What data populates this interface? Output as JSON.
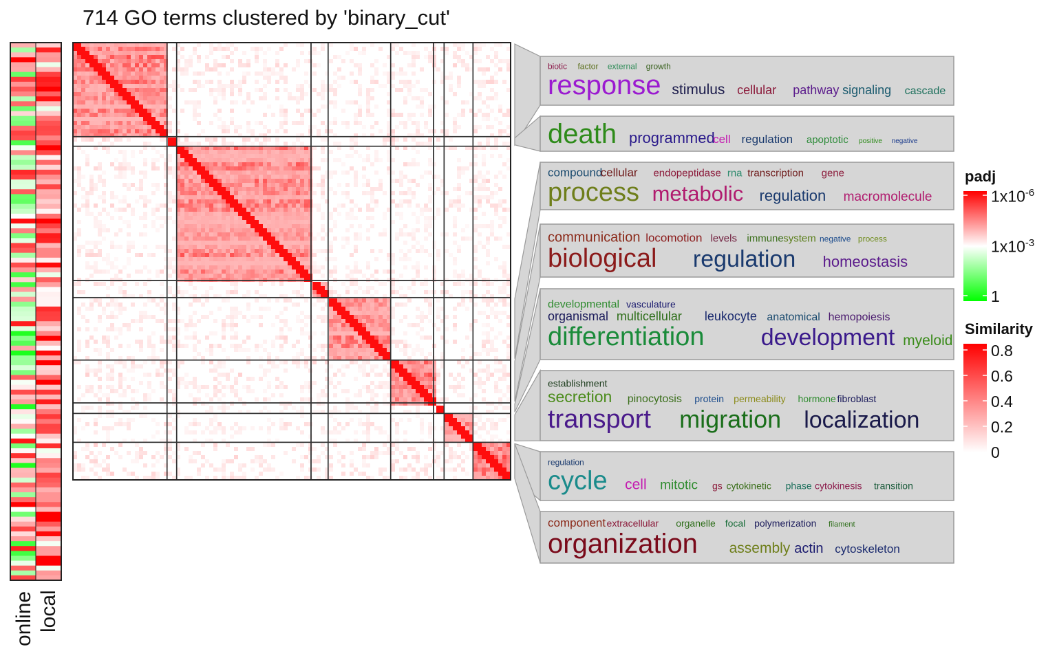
{
  "chart_data": {
    "type": "heatmap",
    "title": "714 GO terms clustered by 'binary_cut'",
    "annotation_columns": [
      "online",
      "local"
    ],
    "n_terms": 714,
    "clusters": [
      {
        "keywords": [
          {
            "w": "biotic",
            "c": "#8b1a4a",
            "s": 12
          },
          {
            "w": "factor",
            "c": "#5a6e1a",
            "s": 12
          },
          {
            "w": "external",
            "c": "#2e8b57",
            "s": 12
          },
          {
            "w": "growth",
            "c": "#355e1a",
            "s": 12
          },
          {
            "w": "response",
            "c": "#9b1bd0",
            "s": 40,
            "nl": true
          },
          {
            "w": "stimulus",
            "c": "#1a1a4a",
            "s": 21
          },
          {
            "w": "cellular",
            "c": "#8b1a3a",
            "s": 18
          },
          {
            "w": "pathway",
            "c": "#5a1a8b",
            "s": 18
          },
          {
            "w": "signaling",
            "c": "#1a5a6e",
            "s": 18
          },
          {
            "w": "cascade",
            "c": "#1a6e5a",
            "s": 16
          }
        ]
      },
      {
        "keywords": [
          {
            "w": "death",
            "c": "#2e8b1a",
            "s": 40
          },
          {
            "w": "programmed",
            "c": "#2a1a8b",
            "s": 22
          },
          {
            "w": "cell",
            "c": "#c41ab0",
            "s": 17
          },
          {
            "w": "regulation",
            "c": "#1a3a6e",
            "s": 17
          },
          {
            "w": "apoptotic",
            "c": "#2e8b3a",
            "s": 15
          },
          {
            "w": "positive",
            "c": "#2e8b1a",
            "s": 10
          },
          {
            "w": "negative",
            "c": "#1a3a8b",
            "s": 10
          }
        ]
      },
      {
        "keywords": [
          {
            "w": "compound",
            "c": "#1a4a6e",
            "s": 17
          },
          {
            "w": "cellular",
            "c": "#6e1a1a",
            "s": 17
          },
          {
            "w": "endopeptidase",
            "c": "#8b1a3a",
            "s": 15
          },
          {
            "w": "rna",
            "c": "#2e8b6e",
            "s": 15
          },
          {
            "w": "transcription",
            "c": "#6e1a1a",
            "s": 15
          },
          {
            "w": "gene",
            "c": "#8b1a3a",
            "s": 15
          },
          {
            "w": "process",
            "c": "#6e7e1a",
            "s": 38,
            "nl": true
          },
          {
            "w": "metabolic",
            "c": "#b01a6e",
            "s": 31
          },
          {
            "w": "regulation",
            "c": "#1a3a6e",
            "s": 22
          },
          {
            "w": "macromolecule",
            "c": "#b01a6e",
            "s": 19
          }
        ]
      },
      {
        "keywords": [
          {
            "w": "communication",
            "c": "#8b2a1a",
            "s": 20
          },
          {
            "w": "locomotion",
            "c": "#8b1a1a",
            "s": 17
          },
          {
            "w": "levels",
            "c": "#6e1a3a",
            "s": 15
          },
          {
            "w": "immune",
            "c": "#3a6e1a",
            "s": 15
          },
          {
            "w": "system",
            "c": "#5a7e1a",
            "s": 15
          },
          {
            "w": "negative",
            "c": "#1a4a8b",
            "s": 12
          },
          {
            "w": "process",
            "c": "#6e8b1a",
            "s": 12
          },
          {
            "w": "biological",
            "c": "#8b1a1a",
            "s": 38,
            "nl": true
          },
          {
            "w": "regulation",
            "c": "#1a3a6e",
            "s": 34
          },
          {
            "w": "homeostasis",
            "c": "#5a1a8b",
            "s": 22
          }
        ]
      },
      {
        "keywords": [
          {
            "w": "developmental",
            "c": "#2e8b2e",
            "s": 16
          },
          {
            "w": "vasculature",
            "c": "#1a1a6e",
            "s": 14
          },
          {
            "w": "organismal",
            "c": "#1a1a5a",
            "s": 18,
            "nl": true
          },
          {
            "w": "multicellular",
            "c": "#2e6e1a",
            "s": 18
          },
          {
            "w": "leukocyte",
            "c": "#1a2a6e",
            "s": 18
          },
          {
            "w": "anatomical",
            "c": "#1a4a6e",
            "s": 16
          },
          {
            "w": "hemopoiesis",
            "c": "#4a1a6e",
            "s": 16
          },
          {
            "w": "differentiation",
            "c": "#1a8b3a",
            "s": 38,
            "nl": true
          },
          {
            "w": "development",
            "c": "#3a1a8b",
            "s": 34
          },
          {
            "w": "myeloid",
            "c": "#3a8b1a",
            "s": 21
          }
        ]
      },
      {
        "keywords": [
          {
            "w": "establishment",
            "c": "#1a3a1a",
            "s": 14
          },
          {
            "w": "secretion",
            "c": "#4a8b1a",
            "s": 23,
            "nl": true
          },
          {
            "w": "pinocytosis",
            "c": "#3a6e1a",
            "s": 16
          },
          {
            "w": "protein",
            "c": "#1a4a8b",
            "s": 14
          },
          {
            "w": "permeability",
            "c": "#8b8b1a",
            "s": 14
          },
          {
            "w": "hormone",
            "c": "#2e8b2e",
            "s": 14
          },
          {
            "w": "fibroblast",
            "c": "#1a1a5a",
            "s": 14
          },
          {
            "w": "transport",
            "c": "#4a1a8b",
            "s": 38,
            "nl": true
          },
          {
            "w": "migration",
            "c": "#1a6e1a",
            "s": 36
          },
          {
            "w": "localization",
            "c": "#1a1a4a",
            "s": 34
          }
        ]
      },
      {
        "keywords": [
          {
            "w": "regulation",
            "c": "#1a3a6e",
            "s": 12
          },
          {
            "w": "cycle",
            "c": "#1a8b8b",
            "s": 38,
            "nl": true
          },
          {
            "w": "cell",
            "c": "#c41ab0",
            "s": 21
          },
          {
            "w": "mitotic",
            "c": "#2e8b2e",
            "s": 19
          },
          {
            "w": "gs",
            "c": "#8b1a3a",
            "s": 14
          },
          {
            "w": "cytokinetic",
            "c": "#3a6e1a",
            "s": 14
          },
          {
            "w": "phase",
            "c": "#1a6e5a",
            "s": 14
          },
          {
            "w": "cytokinesis",
            "c": "#8b1a4a",
            "s": 14
          },
          {
            "w": "transition",
            "c": "#1a5a3a",
            "s": 14
          }
        ]
      },
      {
        "keywords": [
          {
            "w": "component",
            "c": "#8b2a1a",
            "s": 17
          },
          {
            "w": "extracellular",
            "c": "#8b1a3a",
            "s": 14
          },
          {
            "w": "organelle",
            "c": "#2e6e1a",
            "s": 14
          },
          {
            "w": "focal",
            "c": "#1a6e3a",
            "s": 14
          },
          {
            "w": "polymerization",
            "c": "#1a1a5a",
            "s": 14
          },
          {
            "w": "filament",
            "c": "#2e6e1a",
            "s": 11
          },
          {
            "w": "organization",
            "c": "#7a0a1a",
            "s": 40,
            "nl": true
          },
          {
            "w": "assembly",
            "c": "#6e7e1a",
            "s": 21
          },
          {
            "w": "actin",
            "c": "#1a1a6e",
            "s": 20
          },
          {
            "w": "cytoskeleton",
            "c": "#1a2a6e",
            "s": 17
          }
        ]
      }
    ],
    "cluster_fractions": [
      0.215,
      0.022,
      0.307,
      0.039,
      0.143,
      0.098,
      0.024,
      0.066,
      0.086
    ],
    "legend_padj": {
      "title": "padj",
      "labels": [
        "1x10",
        "-6",
        "1x10",
        "-3",
        "1"
      ],
      "colors": [
        "#ff0000",
        "#ffffff",
        "#00ff00"
      ]
    },
    "legend_similarity": {
      "title": "Similarity",
      "ticks": [
        "0.8",
        "0.6",
        "0.4",
        "0.2",
        "0"
      ],
      "range": [
        0,
        0.8
      ]
    }
  }
}
